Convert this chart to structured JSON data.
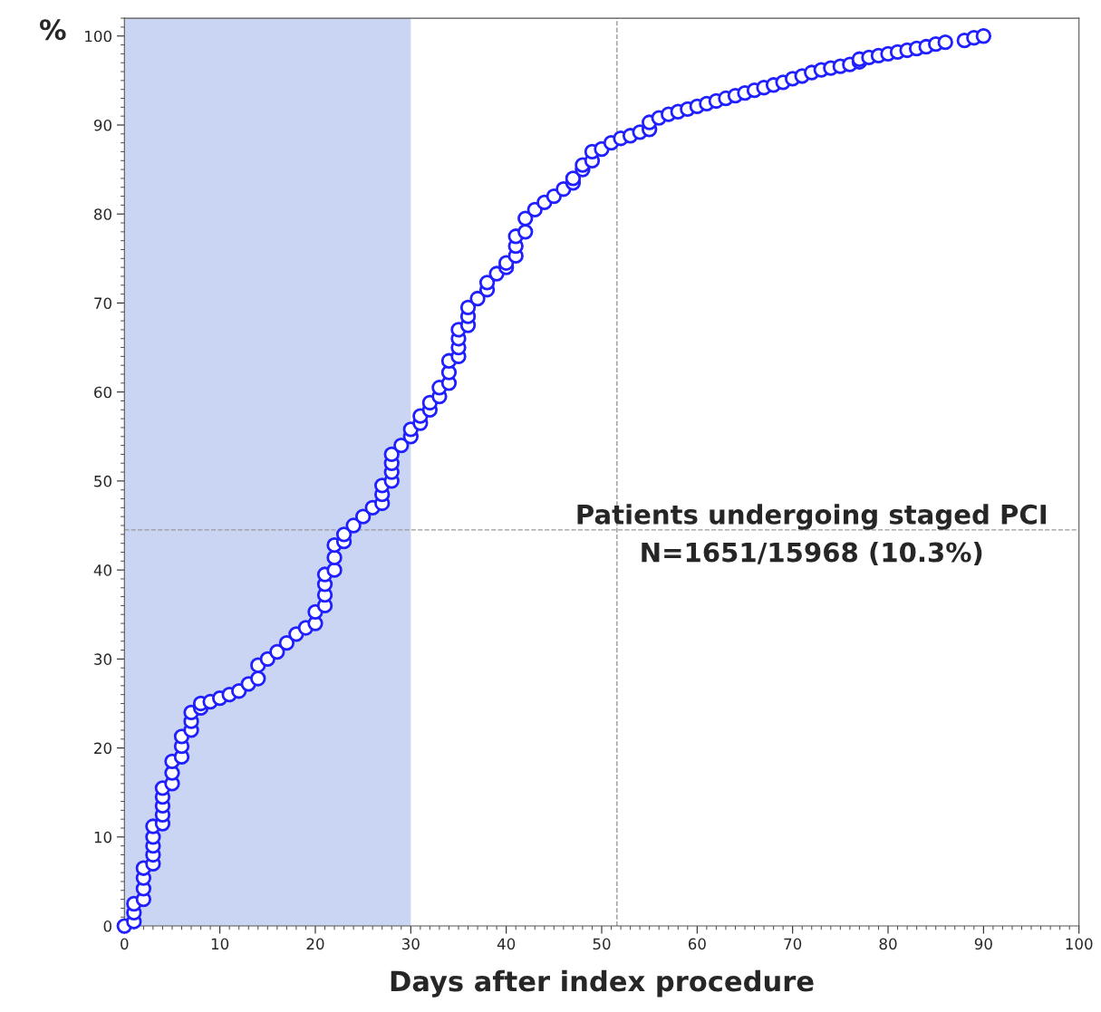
{
  "chart_data": {
    "type": "scatter",
    "xlabel": "Days after index procedure",
    "ylabel": "%",
    "x": [
      0,
      1,
      1,
      1,
      2,
      2,
      2,
      2,
      3,
      3,
      3,
      3,
      3,
      4,
      4,
      4,
      4,
      4,
      5,
      5,
      5,
      6,
      6,
      6,
      7,
      7,
      7,
      8,
      8,
      9,
      10,
      11,
      12,
      13,
      14,
      14,
      15,
      16,
      17,
      18,
      19,
      20,
      20,
      21,
      21,
      21,
      21,
      22,
      22,
      22,
      23,
      23,
      24,
      25,
      26,
      27,
      27,
      27,
      28,
      28,
      28,
      28,
      29,
      30,
      30,
      31,
      31,
      32,
      32,
      33,
      33,
      34,
      34,
      34,
      35,
      35,
      35,
      35,
      36,
      36,
      36,
      37,
      38,
      38,
      39,
      40,
      40,
      41,
      41,
      41,
      42,
      42,
      43,
      44,
      45,
      46,
      47,
      47,
      48,
      48,
      49,
      49,
      50,
      51,
      52,
      53,
      54,
      55,
      55,
      56,
      57,
      58,
      59,
      60,
      61,
      62,
      63,
      64,
      65,
      66,
      67,
      68,
      69,
      70,
      71,
      72,
      73,
      74,
      75,
      76,
      77,
      77,
      78,
      79,
      80,
      81,
      82,
      83,
      84,
      85,
      86,
      88,
      89,
      90
    ],
    "series": [
      {
        "color": "#1f1fff",
        "values": [
          0,
          0.5,
          1.5,
          2.5,
          3,
          4.2,
          5.4,
          6.5,
          7,
          8,
          9,
          10,
          11.2,
          11.5,
          12.5,
          13.5,
          14.5,
          15.5,
          16,
          17.2,
          18.5,
          19,
          20.2,
          21.3,
          22,
          23,
          24,
          24.5,
          25,
          25.2,
          25.6,
          26,
          26.4,
          27.2,
          27.8,
          29.3,
          30,
          30.8,
          31.8,
          32.8,
          33.5,
          34,
          35.3,
          36,
          37.2,
          38.4,
          39.5,
          40,
          41.4,
          42.8,
          43.2,
          44,
          45,
          46,
          47,
          47.5,
          48.5,
          49.5,
          50,
          51,
          52,
          53,
          54,
          55,
          55.8,
          56.5,
          57.3,
          58,
          58.8,
          59.5,
          60.5,
          61,
          62.2,
          63.5,
          64,
          65,
          66,
          67,
          67.5,
          68.5,
          69.5,
          70.5,
          71.5,
          72.3,
          73.3,
          74,
          74.5,
          75.3,
          76.4,
          77.5,
          78,
          79.5,
          80.5,
          81.3,
          82,
          82.8,
          83.5,
          84,
          85,
          85.5,
          86,
          87,
          87.3,
          88,
          88.5,
          88.8,
          89.2,
          89.5,
          90.3,
          90.8,
          91.2,
          91.5,
          91.8,
          92.1,
          92.4,
          92.7,
          93,
          93.3,
          93.6,
          93.9,
          94.2,
          94.5,
          94.8,
          95.2,
          95.5,
          95.9,
          96.2,
          96.4,
          96.6,
          96.8,
          97.1,
          97.4,
          97.6,
          97.8,
          98,
          98.2,
          98.4,
          98.6,
          98.8,
          99.1,
          99.3,
          99.5,
          99.8,
          100
        ]
      }
    ],
    "marker": "circle",
    "xlim": [
      0,
      100
    ],
    "xticks": [
      0,
      10,
      20,
      30,
      40,
      50,
      60,
      70,
      80,
      90,
      100
    ],
    "ylim": [
      0,
      102
    ],
    "yticks": [
      0,
      10,
      20,
      30,
      40,
      50,
      60,
      70,
      80,
      90,
      100
    ],
    "bands": [
      {
        "axis": "x",
        "from": 0,
        "to": 30,
        "color": "#c9d5f2"
      }
    ],
    "ref_lines": [
      {
        "axis": "x",
        "value": 51.6,
        "color": "#999999",
        "line_style": "dashed"
      },
      {
        "axis": "y",
        "value": 44.5,
        "color": "#999999",
        "line_style": "dashed"
      }
    ],
    "annotations": [
      "Patients undergoing staged PCI\nN=1651/15968 (10.3%)"
    ],
    "grid": false
  }
}
